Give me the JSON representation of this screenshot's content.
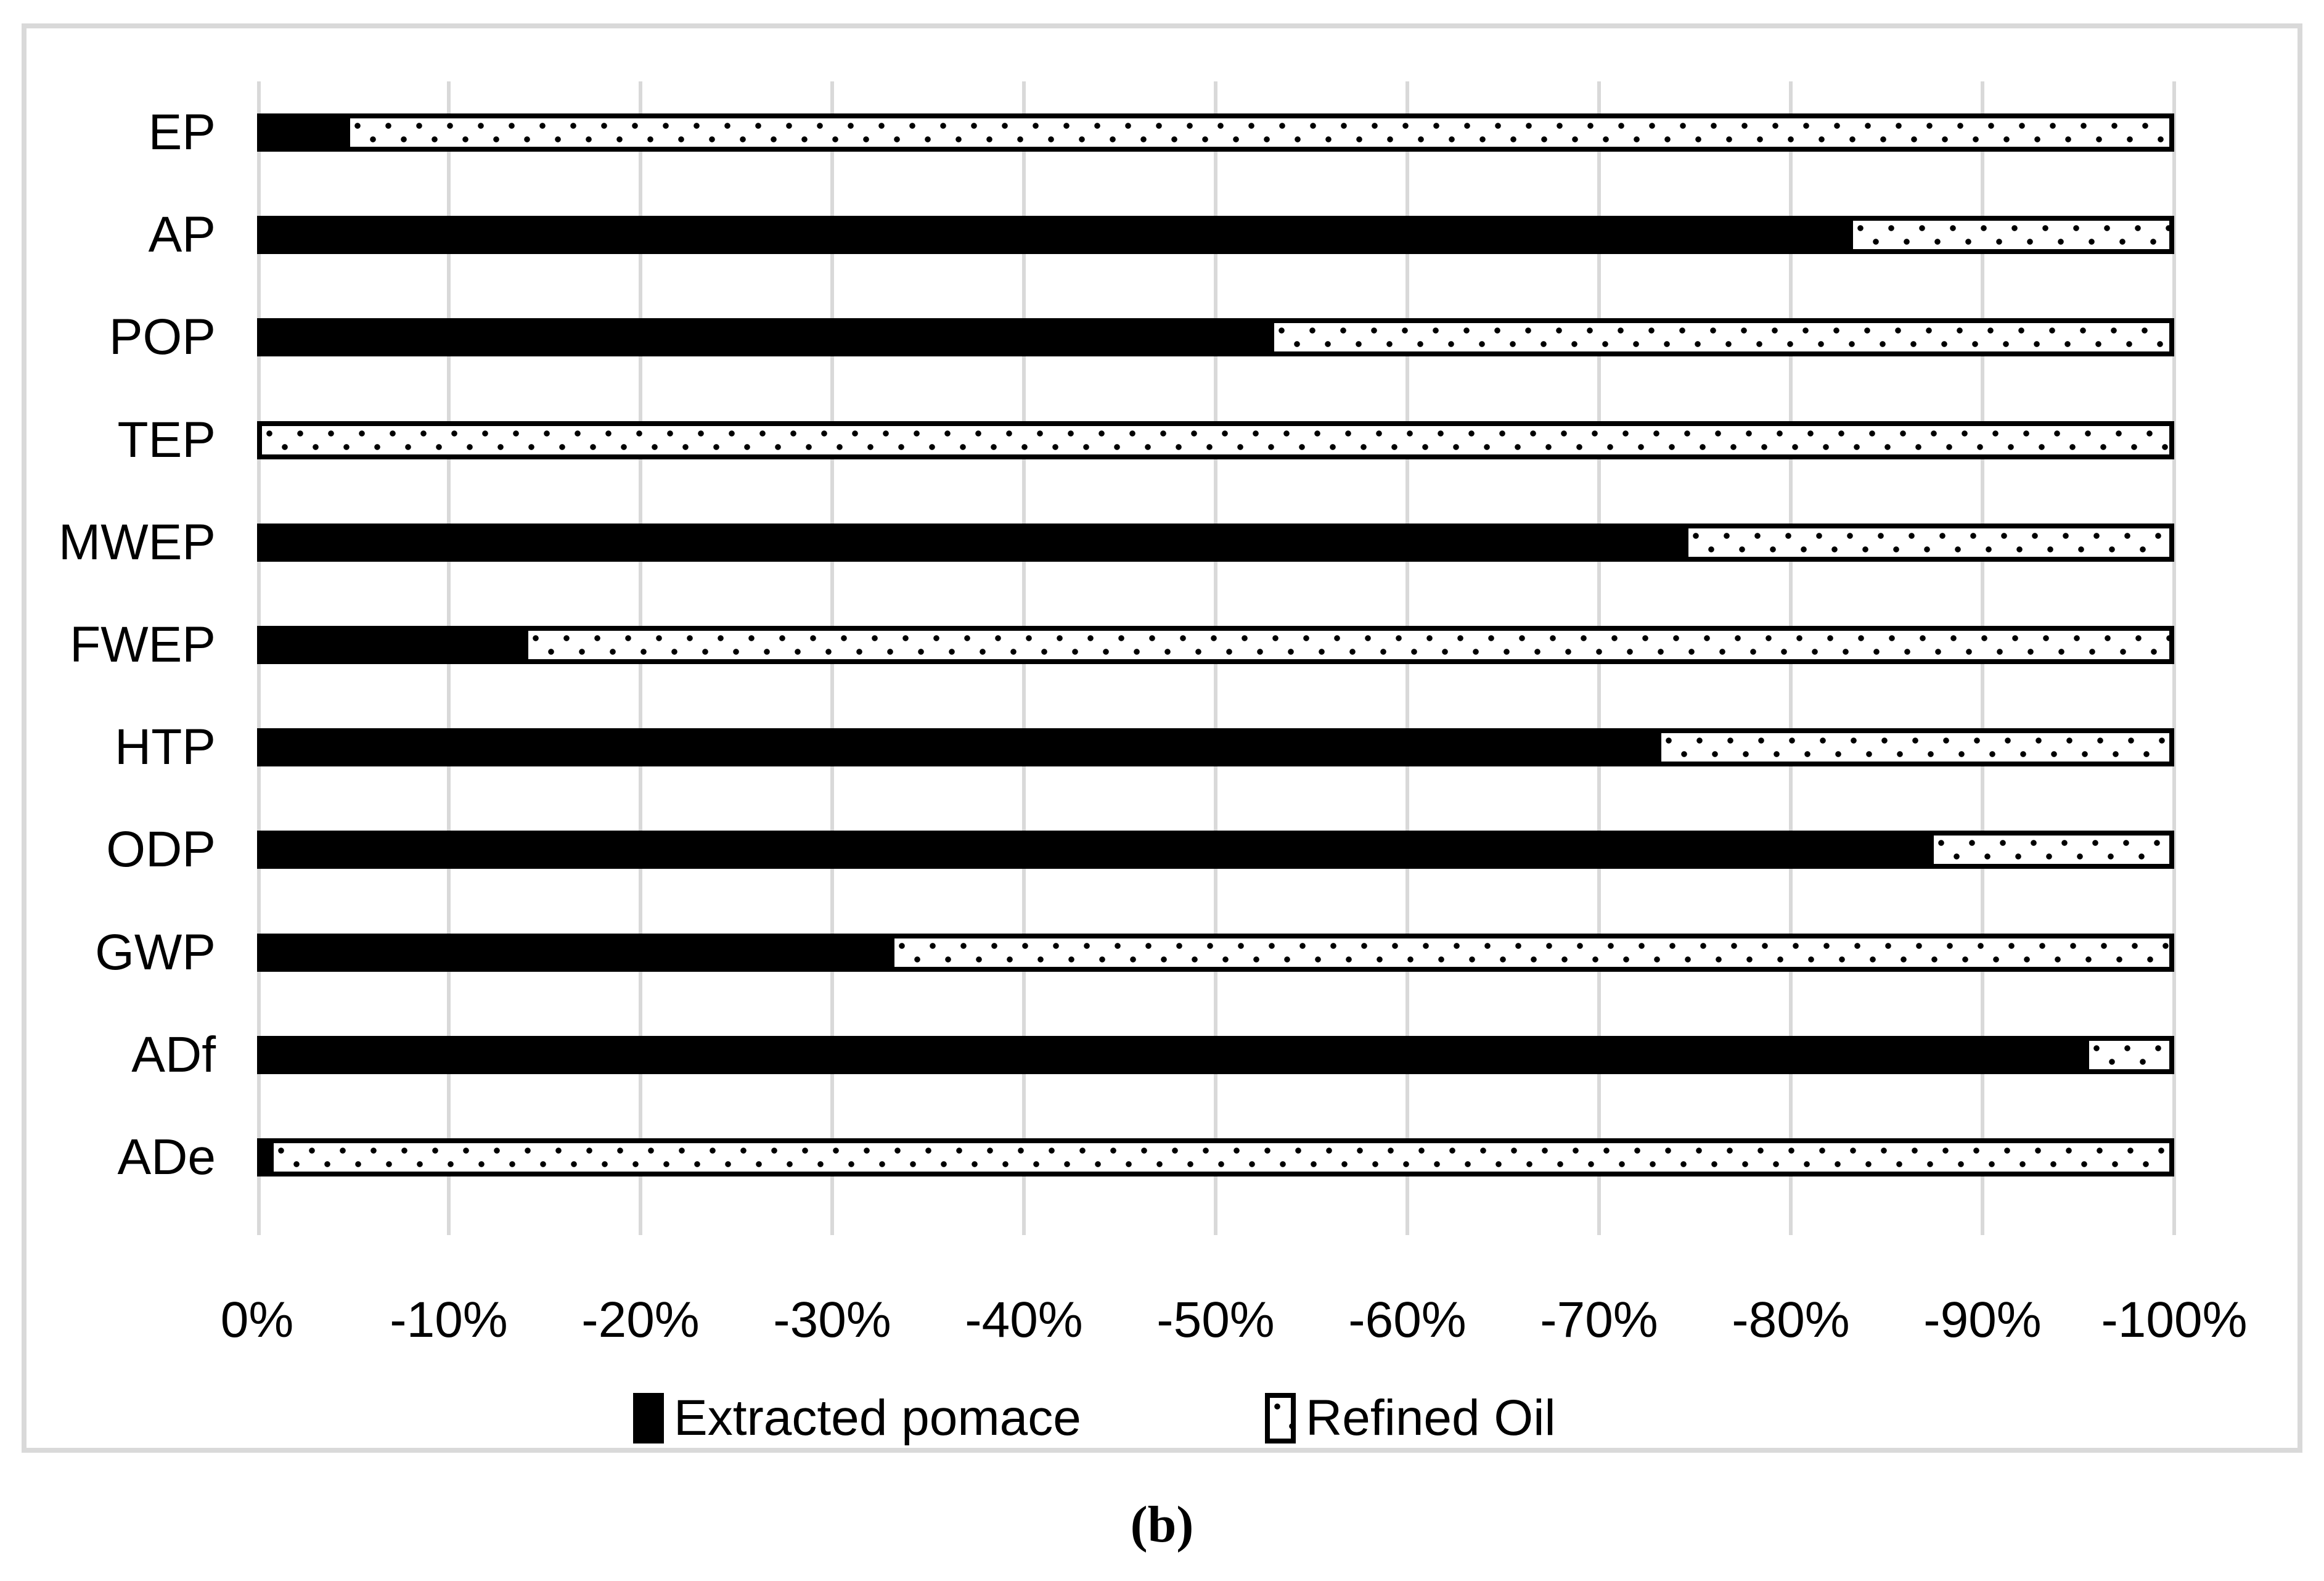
{
  "figure": {
    "caption": "(b)",
    "background": "#ffffff",
    "frame_border_color": "#d9d9d9"
  },
  "axis": {
    "gridline_color": "#d9d9d9",
    "x_tick_labels": [
      "0%",
      "-10%",
      "-20%",
      "-30%",
      "-40%",
      "-50%",
      "-60%",
      "-70%",
      "-80%",
      "-90%",
      "-100%"
    ]
  },
  "legend": {
    "items": [
      {
        "label": "Extracted pomace",
        "swatch": "solid-black-square"
      },
      {
        "label": "Refined Oil",
        "swatch": "white-square-black-dots"
      }
    ],
    "position": "bottom"
  },
  "chart_data": {
    "type": "bar",
    "orientation": "horizontal",
    "stacked": true,
    "title": "",
    "xlabel": "",
    "ylabel": "",
    "categories": [
      "EP",
      "AP",
      "POP",
      "TEP",
      "MWEP",
      "FWEP",
      "HTP",
      "ODP",
      "GWP",
      "ADf",
      "ADe"
    ],
    "series": [
      {
        "name": "Extracted pomace",
        "style": "solid-black",
        "values_percent_of_bar": [
          4.6,
          83.0,
          52.8,
          0.0,
          74.4,
          13.9,
          73.0,
          87.2,
          33.0,
          95.3,
          0.6
        ]
      },
      {
        "name": "Refined Oil",
        "style": "white-fill-black-dot-pattern-black-border",
        "values_percent_of_bar": [
          95.4,
          17.0,
          47.2,
          100.0,
          25.6,
          86.1,
          27.0,
          12.8,
          67.0,
          4.7,
          99.4
        ]
      }
    ],
    "x_axis": {
      "tick_labels": [
        "0%",
        "-10%",
        "-20%",
        "-30%",
        "-40%",
        "-50%",
        "-60%",
        "-70%",
        "-80%",
        "-90%",
        "-100%"
      ],
      "range": [
        "0%",
        "-100%"
      ],
      "note_direction": "0% at left, -100% at right; every stacked bar spans the full axis",
      "gridlines": true
    },
    "legend_position": "bottom-center",
    "caption": "(b)"
  }
}
